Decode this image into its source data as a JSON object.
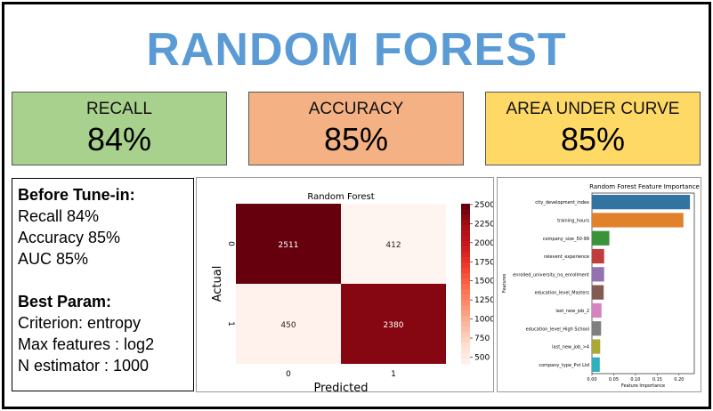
{
  "title": "RANDOM FOREST",
  "metrics": [
    {
      "label": "RECALL",
      "value": "84%"
    },
    {
      "label": "ACCURACY",
      "value": "85%"
    },
    {
      "label": "AREA UNDER CURVE",
      "value": "85%"
    }
  ],
  "notes": {
    "before_heading": "Before Tune-in:",
    "before_lines": [
      "Recall 84%",
      "Accuracy 85%",
      "AUC 85%"
    ],
    "param_heading": "Best Param:",
    "param_lines": [
      "Criterion: entropy",
      "Max features : log2",
      "N estimator : 1000"
    ]
  },
  "colors": {
    "title": "#5b9bd5",
    "recall_bg": "#a9d18e",
    "accuracy_bg": "#f4b183",
    "auc_bg": "#ffd966"
  },
  "chart_data": [
    {
      "type": "heatmap",
      "title": "Random Forest",
      "xlabel": "Predicted",
      "ylabel": "Actual",
      "x_tick_labels": [
        "0",
        "1"
      ],
      "y_tick_labels": [
        "0",
        "1"
      ],
      "values": [
        [
          2511,
          412
        ],
        [
          450,
          2380
        ]
      ],
      "colorbar_ticks": [
        500,
        750,
        1000,
        1250,
        1500,
        1750,
        2000,
        2250,
        2500
      ],
      "colorbar_range": [
        412,
        2511
      ],
      "colormap": "Reds"
    },
    {
      "type": "bar",
      "orientation": "horizontal",
      "title": "Random Forest Feature Importance",
      "xlabel": "Feature Importance",
      "ylabel": "Features",
      "categories": [
        "city_development_index",
        "training_hours",
        "company_size_50-99",
        "relevent_experience",
        "enrolled_university_no_enrollment",
        "education_level_Masters",
        "last_new_job_2",
        "education_level_High School",
        "last_new_job_>4",
        "company_type_Pvt Ltd"
      ],
      "values": [
        0.225,
        0.21,
        0.04,
        0.028,
        0.028,
        0.027,
        0.022,
        0.021,
        0.019,
        0.018
      ],
      "colors": [
        "#3274a1",
        "#e1812c",
        "#3a923a",
        "#c03d3e",
        "#9372b2",
        "#845b53",
        "#d684bd",
        "#7f7f7f",
        "#a9aa35",
        "#2eb0bf"
      ],
      "x_ticks": [
        "0.00",
        "0.05",
        "0.10",
        "0.15",
        "0.20"
      ],
      "xlim": [
        0,
        0.235
      ]
    }
  ]
}
